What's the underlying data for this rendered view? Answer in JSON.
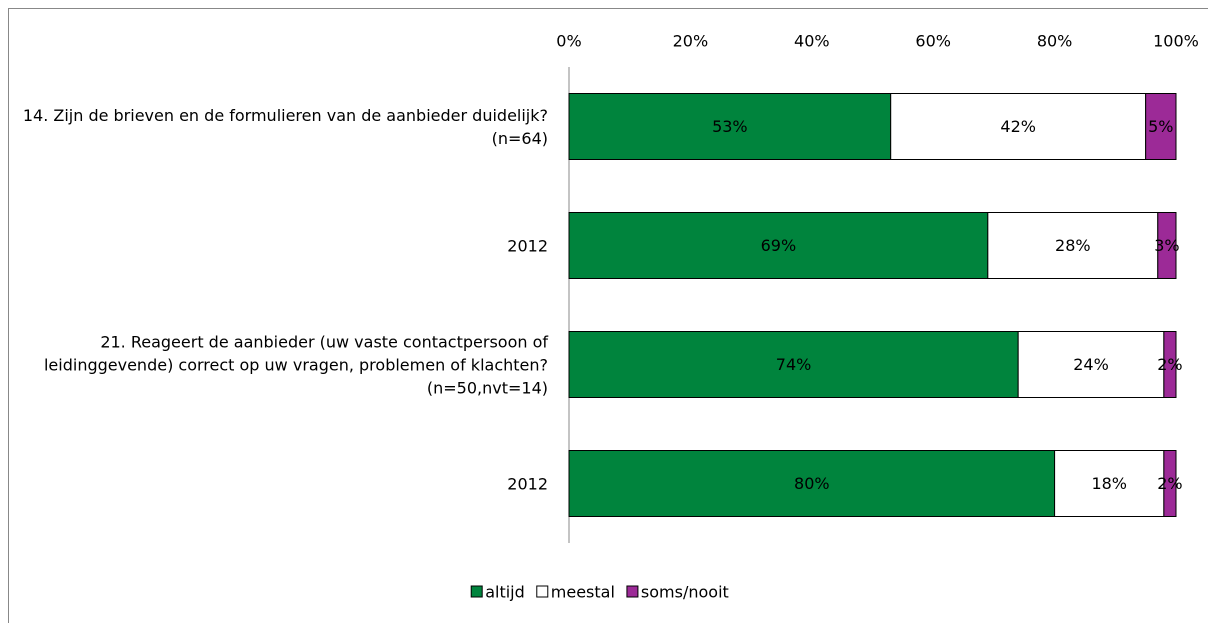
{
  "chart_data": {
    "type": "stacked_bar_horizontal",
    "categories": [
      "14. Zijn de brieven en de formulieren van de aanbieder duidelijk? (n=64)",
      "2012",
      "21. Reageert de aanbieder (uw vaste contactpersoon of leidinggevende) correct op uw vragen, problemen of klachten? (n=50,nvt=14)",
      "2012"
    ],
    "series": [
      {
        "name": "altijd",
        "color": "#00843d",
        "values": [
          53,
          69,
          74,
          80
        ],
        "value_labels": [
          "53%",
          "69%",
          "74%",
          "80%"
        ]
      },
      {
        "name": "meestal",
        "color": "#ffffff",
        "values": [
          42,
          28,
          24,
          18
        ],
        "value_labels": [
          "42%",
          "28%",
          "24%",
          "18%"
        ]
      },
      {
        "name": "soms/nooit",
        "color": "#9c2a97",
        "values": [
          5,
          3,
          2,
          2
        ],
        "value_labels": [
          "5%",
          "3%",
          "2%",
          "2%"
        ]
      }
    ],
    "xlim": [
      0,
      100
    ],
    "xticks": [
      {
        "value": 0,
        "label": "0%"
      },
      {
        "value": 20,
        "label": "20%"
      },
      {
        "value": 40,
        "label": "40%"
      },
      {
        "value": 60,
        "label": "60%"
      },
      {
        "value": 80,
        "label": "80%"
      },
      {
        "value": 100,
        "label": "100%"
      }
    ],
    "legend": "bottom"
  }
}
